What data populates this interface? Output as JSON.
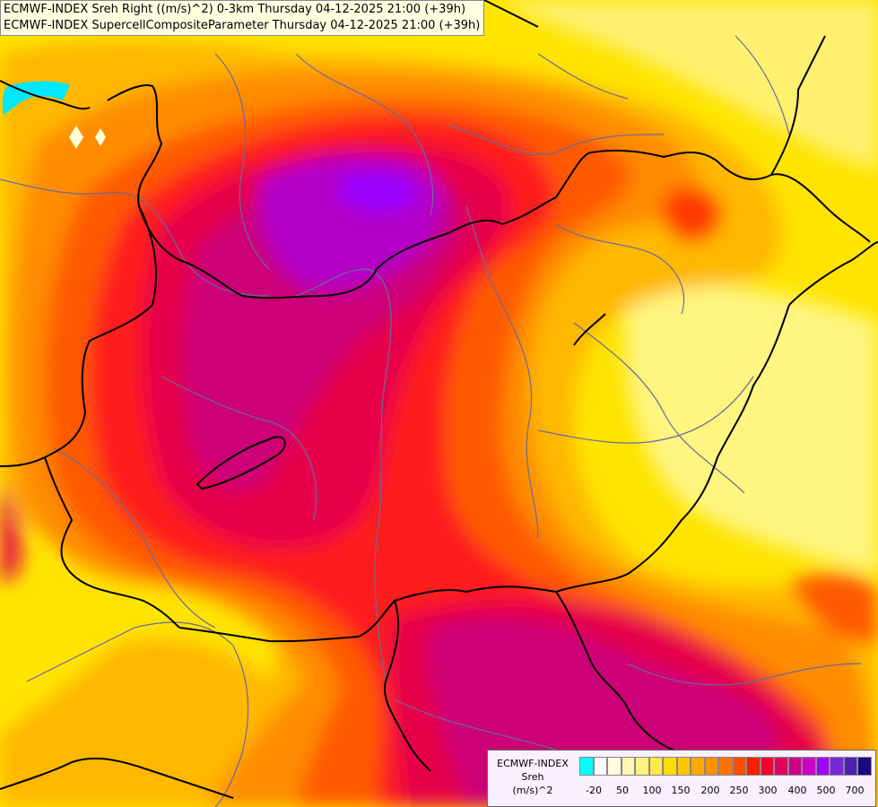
{
  "header": {
    "line1": "ECMWF-INDEX Sreh Right ((m/s)^2) 0-3km Thursday 04-12-2025 21:00 (+39h)",
    "line2": "ECMWF-INDEX SupercellCompositeParameter Thursday 04-12-2025 21:00 (+39h)"
  },
  "legend": {
    "title_model": "ECMWF-INDEX",
    "title_param": "Sreh",
    "title_unit": "(m/s)^2",
    "colors": [
      "#00ffff",
      "#ffffff",
      "#fffbe0",
      "#fff6b0",
      "#fff080",
      "#ffe84a",
      "#ffdc00",
      "#ffc400",
      "#ffaa00",
      "#ff9000",
      "#ff7200",
      "#ff4e00",
      "#ff1e00",
      "#f50030",
      "#e00060",
      "#cc0088",
      "#c800c8",
      "#a000ff",
      "#7828d8",
      "#5020b0",
      "#1a0a80"
    ],
    "tick_labels": [
      "-20",
      "50",
      "100",
      "150",
      "200",
      "250",
      "300",
      "400",
      "500",
      "700"
    ]
  },
  "palette": {
    "yellow": "#ffe800",
    "light_yellow": "#fff580",
    "amber": "#ffb800",
    "orange": "#ff8c00",
    "dark_orange": "#ff5a00",
    "red": "#ff1a1a",
    "crimson": "#e6004a",
    "magenta": "#cc0077",
    "purple": "#b400c8",
    "violet": "#9a00ff",
    "cyan": "#00e8ff",
    "border_country": "#000000",
    "border_region": "#6a6a9a"
  }
}
